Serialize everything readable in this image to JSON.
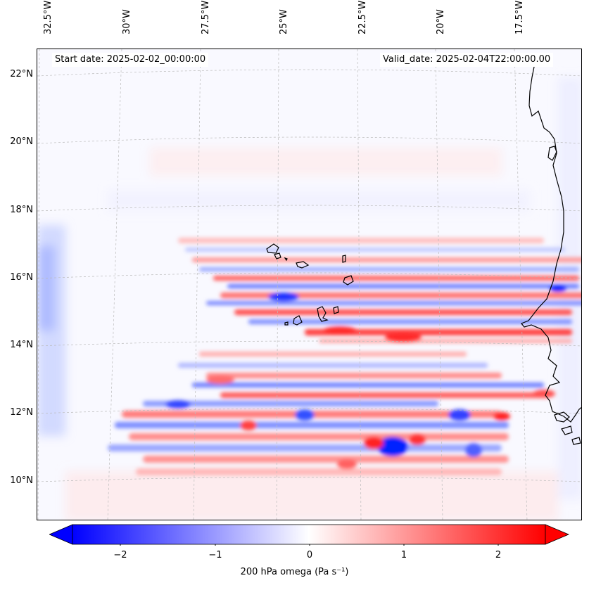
{
  "map": {
    "header": {
      "start_date": "Start date: 2025-02-02_00:00:00",
      "valid_date": "Valid_date: 2025-02-04T22:00:00.00"
    },
    "longitude_labels": [
      "32.5°W",
      "30°W",
      "27.5°W",
      "25°W",
      "22.5°W",
      "20°W",
      "17.5°W"
    ],
    "latitude_labels": [
      "22°N",
      "20°N",
      "18°N",
      "16°N",
      "14°N",
      "12°N",
      "10°N"
    ],
    "field": "200 hPa omega",
    "colors": {
      "negative": "#0000ff",
      "zero": "#ffffff",
      "positive": "#ff0000",
      "coastline": "#000000",
      "gridline": "#bbbbbb"
    }
  },
  "colorbar": {
    "ticks": [
      "−2",
      "−1",
      "0",
      "1",
      "2"
    ],
    "range": [
      -2.6,
      2.6
    ],
    "label": "200 hPa omega (Pa s⁻¹)"
  }
}
